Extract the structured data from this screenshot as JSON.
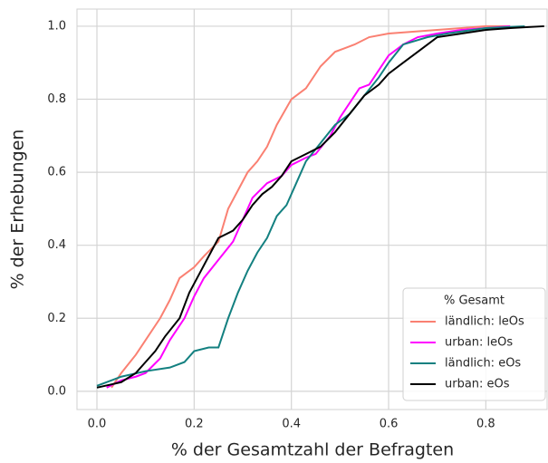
{
  "chart_data": {
    "type": "line",
    "xlabel": "% der Gesamtzahl der Befragten",
    "ylabel": "% der Erhebungen",
    "xlim": [
      -0.041,
      0.926
    ],
    "ylim": [
      -0.05,
      1.047
    ],
    "xticks": [
      {
        "value": 0,
        "label": "0.0"
      },
      0.2,
      0.4,
      0.6,
      0.8
    ],
    "yticks": [
      {
        "value": 0,
        "label": "0.0"
      },
      0.2,
      0.4,
      0.6,
      0.8,
      {
        "value": 1,
        "label": "1.0"
      }
    ],
    "grid": true,
    "legend": "lower right",
    "legend_title": "% Gesamt",
    "series": [
      {
        "name": "ländlich: leOs",
        "color": "#fa8072",
        "x": [
          0.03,
          0.05,
          0.08,
          0.1,
          0.13,
          0.15,
          0.17,
          0.2,
          0.22,
          0.25,
          0.27,
          0.29,
          0.31,
          0.33,
          0.35,
          0.37,
          0.4,
          0.43,
          0.46,
          0.49,
          0.53,
          0.56,
          0.6,
          0.7,
          0.8,
          0.85
        ],
        "values": [
          0.01,
          0.05,
          0.1,
          0.14,
          0.2,
          0.25,
          0.31,
          0.34,
          0.37,
          0.41,
          0.5,
          0.55,
          0.6,
          0.63,
          0.67,
          0.73,
          0.8,
          0.83,
          0.89,
          0.93,
          0.95,
          0.97,
          0.98,
          0.99,
          1.0,
          1.0
        ]
      },
      {
        "name": "urban: leOs",
        "color": "#ff00ff",
        "x": [
          0.02,
          0.05,
          0.08,
          0.1,
          0.13,
          0.15,
          0.18,
          0.2,
          0.22,
          0.25,
          0.28,
          0.3,
          0.32,
          0.35,
          0.38,
          0.4,
          0.43,
          0.45,
          0.48,
          0.5,
          0.52,
          0.54,
          0.56,
          0.58,
          0.6,
          0.63,
          0.66,
          0.7,
          0.75,
          0.85
        ],
        "values": [
          0.01,
          0.03,
          0.04,
          0.05,
          0.09,
          0.14,
          0.2,
          0.26,
          0.31,
          0.36,
          0.41,
          0.47,
          0.53,
          0.57,
          0.59,
          0.62,
          0.64,
          0.65,
          0.7,
          0.75,
          0.79,
          0.83,
          0.84,
          0.88,
          0.92,
          0.95,
          0.97,
          0.98,
          0.99,
          1.0
        ]
      },
      {
        "name": "ländlich: eOs",
        "color": "#138080",
        "x": [
          0.0,
          0.05,
          0.1,
          0.15,
          0.18,
          0.2,
          0.23,
          0.25,
          0.27,
          0.29,
          0.31,
          0.33,
          0.35,
          0.37,
          0.39,
          0.41,
          0.43,
          0.46,
          0.49,
          0.52,
          0.55,
          0.58,
          0.6,
          0.63,
          0.68,
          0.72,
          0.8,
          0.88
        ],
        "values": [
          0.015,
          0.04,
          0.055,
          0.065,
          0.08,
          0.11,
          0.12,
          0.12,
          0.2,
          0.27,
          0.33,
          0.38,
          0.42,
          0.48,
          0.51,
          0.57,
          0.63,
          0.68,
          0.73,
          0.76,
          0.81,
          0.86,
          0.9,
          0.95,
          0.97,
          0.98,
          0.995,
          1.0
        ]
      },
      {
        "name": "urban: eOs",
        "color": "#000000",
        "x": [
          0.0,
          0.05,
          0.08,
          0.1,
          0.12,
          0.14,
          0.17,
          0.19,
          0.21,
          0.23,
          0.25,
          0.28,
          0.3,
          0.32,
          0.34,
          0.36,
          0.38,
          0.4,
          0.43,
          0.46,
          0.49,
          0.52,
          0.55,
          0.58,
          0.6,
          0.63,
          0.66,
          0.7,
          0.75,
          0.8,
          0.85,
          0.92
        ],
        "values": [
          0.01,
          0.025,
          0.05,
          0.08,
          0.11,
          0.15,
          0.2,
          0.27,
          0.32,
          0.37,
          0.42,
          0.44,
          0.47,
          0.51,
          0.54,
          0.56,
          0.59,
          0.63,
          0.65,
          0.67,
          0.71,
          0.76,
          0.81,
          0.84,
          0.87,
          0.9,
          0.93,
          0.97,
          0.98,
          0.99,
          0.995,
          1.0
        ]
      }
    ]
  }
}
